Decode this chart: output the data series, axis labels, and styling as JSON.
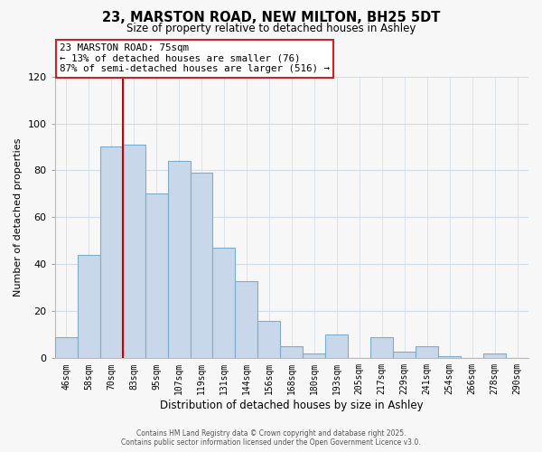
{
  "title": "23, MARSTON ROAD, NEW MILTON, BH25 5DT",
  "subtitle": "Size of property relative to detached houses in Ashley",
  "xlabel": "Distribution of detached houses by size in Ashley",
  "ylabel": "Number of detached properties",
  "bin_labels": [
    "46sqm",
    "58sqm",
    "70sqm",
    "83sqm",
    "95sqm",
    "107sqm",
    "119sqm",
    "131sqm",
    "144sqm",
    "156sqm",
    "168sqm",
    "180sqm",
    "193sqm",
    "205sqm",
    "217sqm",
    "229sqm",
    "241sqm",
    "254sqm",
    "266sqm",
    "278sqm",
    "290sqm"
  ],
  "bar_values": [
    9,
    44,
    90,
    91,
    70,
    84,
    79,
    47,
    33,
    16,
    5,
    2,
    10,
    0,
    9,
    3,
    5,
    1,
    0,
    2,
    0
  ],
  "bar_color": "#c8d8ea",
  "bar_edge_color": "#7aadcc",
  "vline_color": "#cc0000",
  "vline_position": 2.5,
  "ylim": [
    0,
    120
  ],
  "yticks": [
    0,
    20,
    40,
    60,
    80,
    100,
    120
  ],
  "annotation_title": "23 MARSTON ROAD: 75sqm",
  "annotation_line1": "← 13% of detached houses are smaller (76)",
  "annotation_line2": "87% of semi-detached houses are larger (516) →",
  "annotation_box_color": "white",
  "annotation_box_edge": "#cc2222",
  "footer1": "Contains HM Land Registry data © Crown copyright and database right 2025.",
  "footer2": "Contains public sector information licensed under the Open Government Licence v3.0.",
  "background_color": "#f7f7f7",
  "grid_color": "#d0dde8"
}
